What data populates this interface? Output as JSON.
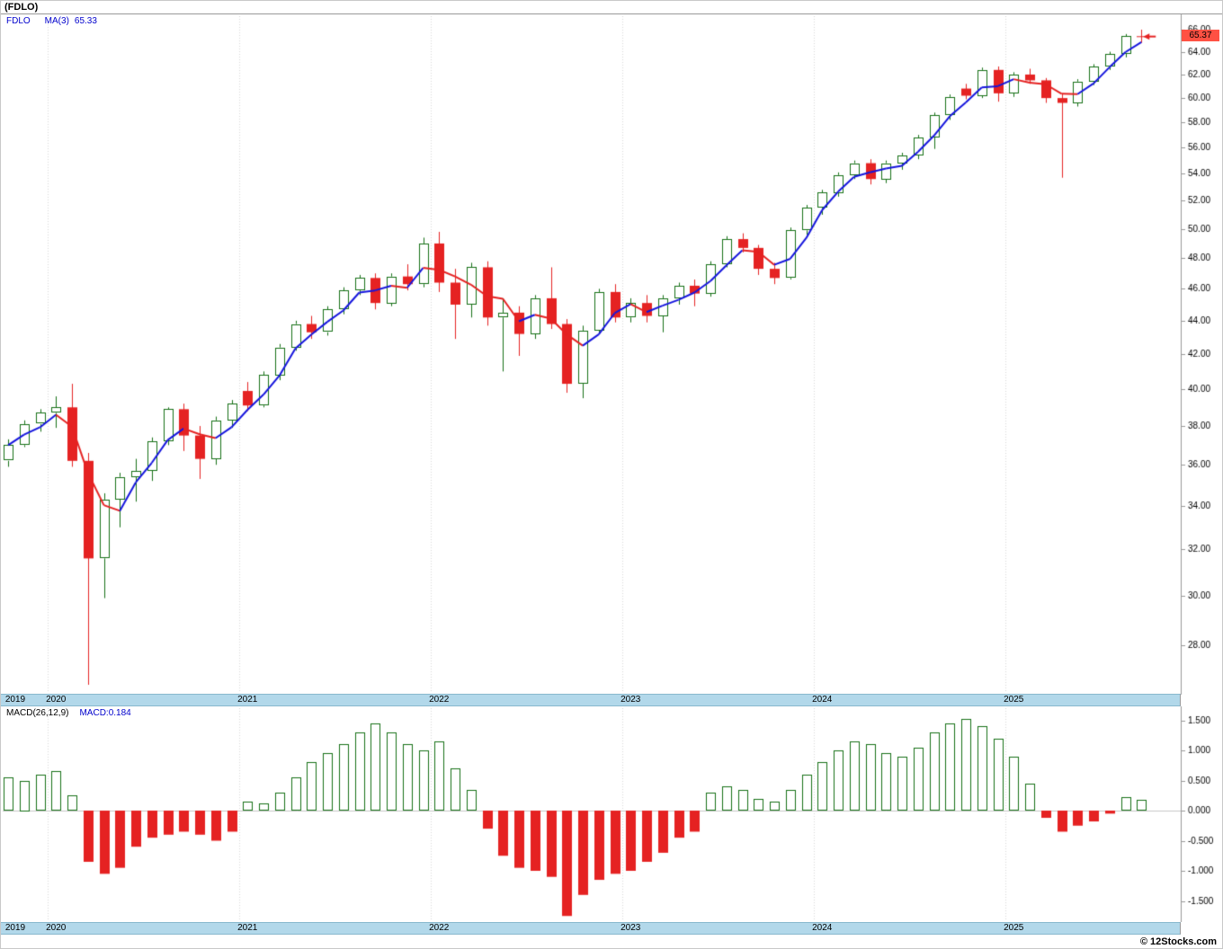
{
  "header": {
    "title": "(FDLO)"
  },
  "legend": {
    "symbol": "FDLO",
    "ma_label": "MA(3)",
    "ma_value": "65.33"
  },
  "macd_panel": {
    "label": "MACD(26,12,9)",
    "value_label": "MACD:0.184"
  },
  "footer": {
    "credit": "© 12Stocks.com"
  },
  "colors": {
    "up": "#157015",
    "down": "#e52222",
    "ma_up": "#1515dd",
    "ma_down": "#e52222",
    "axis_strip": "#b2d8ea",
    "tag_bg": "#ff5143",
    "legend_text": "#0000cc",
    "axis_line": "#999999",
    "grid_dotted": "#d8d8d8",
    "zero_line": "#c8c8c8"
  },
  "chart_data": {
    "type": "candlestick",
    "symbol": "FDLO",
    "interval": "monthly",
    "title": "(FDLO)",
    "overlay": "MA(3) line, blue when rising, red when falling",
    "ma_period": 3,
    "last_price": 65.37,
    "last_price_label": "65.37",
    "price_axis": {
      "scale": "log",
      "ticks": [
        "66.00",
        "64.00",
        "62.00",
        "60.00",
        "58.00",
        "56.00",
        "54.00",
        "52.00",
        "50.00",
        "48.00",
        "46.00",
        "44.00",
        "42.00",
        "40.00",
        "38.00",
        "36.00",
        "34.00",
        "32.00",
        "30.00",
        "28.00"
      ]
    },
    "years": [
      {
        "label": "2019",
        "month_index": 0
      },
      {
        "label": "2020",
        "month_index": 3
      },
      {
        "label": "2021",
        "month_index": 15
      },
      {
        "label": "2022",
        "month_index": 27
      },
      {
        "label": "2023",
        "month_index": 39
      },
      {
        "label": "2024",
        "month_index": 51
      },
      {
        "label": "2025",
        "month_index": 63
      }
    ],
    "months": [
      "2019-10",
      "2019-11",
      "2019-12",
      "2020-01",
      "2020-02",
      "2020-03",
      "2020-04",
      "2020-05",
      "2020-06",
      "2020-07",
      "2020-08",
      "2020-09",
      "2020-10",
      "2020-11",
      "2020-12",
      "2021-01",
      "2021-02",
      "2021-03",
      "2021-04",
      "2021-05",
      "2021-06",
      "2021-07",
      "2021-08",
      "2021-09",
      "2021-10",
      "2021-11",
      "2021-12",
      "2022-01",
      "2022-02",
      "2022-03",
      "2022-04",
      "2022-05",
      "2022-06",
      "2022-07",
      "2022-08",
      "2022-09",
      "2022-10",
      "2022-11",
      "2022-12",
      "2023-01",
      "2023-02",
      "2023-03",
      "2023-04",
      "2023-05",
      "2023-06",
      "2023-07",
      "2023-08",
      "2023-09",
      "2023-10",
      "2023-11",
      "2023-12",
      "2024-01",
      "2024-02",
      "2024-03",
      "2024-04",
      "2024-05",
      "2024-06",
      "2024-07",
      "2024-08",
      "2024-09",
      "2024-10",
      "2024-11",
      "2024-12",
      "2025-01",
      "2025-02",
      "2025-03",
      "2025-04",
      "2025-05",
      "2025-06",
      "2025-07",
      "2025-08",
      "2025-09"
    ],
    "ohlc": [
      [
        36.2,
        37.3,
        35.9,
        37.0
      ],
      [
        37.0,
        38.3,
        36.9,
        38.1
      ],
      [
        38.1,
        38.9,
        37.7,
        38.7
      ],
      [
        38.7,
        39.6,
        37.9,
        39.0
      ],
      [
        39.0,
        40.3,
        35.9,
        36.2
      ],
      [
        36.2,
        36.6,
        26.5,
        31.6
      ],
      [
        31.6,
        34.6,
        29.9,
        34.3
      ],
      [
        34.3,
        35.6,
        33.0,
        35.4
      ],
      [
        35.4,
        36.3,
        34.2,
        35.7
      ],
      [
        35.7,
        37.4,
        35.2,
        37.2
      ],
      [
        37.2,
        39.0,
        37.0,
        38.9
      ],
      [
        38.9,
        39.2,
        36.7,
        37.5
      ],
      [
        37.5,
        38.0,
        35.3,
        36.3
      ],
      [
        36.3,
        38.5,
        36.0,
        38.3
      ],
      [
        38.3,
        39.4,
        37.9,
        39.2
      ],
      [
        39.9,
        40.4,
        38.8,
        39.1
      ],
      [
        39.1,
        41.0,
        39.0,
        40.8
      ],
      [
        40.8,
        42.6,
        40.5,
        42.4
      ],
      [
        42.4,
        44.0,
        42.2,
        43.8
      ],
      [
        43.8,
        44.3,
        42.9,
        43.3
      ],
      [
        43.3,
        44.9,
        43.1,
        44.7
      ],
      [
        44.7,
        46.1,
        44.4,
        45.9
      ],
      [
        45.9,
        46.9,
        45.6,
        46.7
      ],
      [
        46.7,
        47.0,
        44.7,
        45.1
      ],
      [
        45.1,
        47.0,
        44.9,
        46.8
      ],
      [
        46.8,
        47.6,
        45.9,
        46.3
      ],
      [
        46.3,
        49.4,
        46.1,
        49.0
      ],
      [
        49.0,
        49.8,
        45.8,
        46.4
      ],
      [
        46.4,
        47.3,
        42.9,
        45.0
      ],
      [
        45.0,
        47.7,
        44.2,
        47.4
      ],
      [
        47.4,
        47.8,
        43.7,
        44.2
      ],
      [
        44.2,
        45.4,
        41.0,
        44.5
      ],
      [
        44.5,
        44.9,
        41.9,
        43.2
      ],
      [
        43.2,
        45.6,
        42.9,
        45.4
      ],
      [
        45.4,
        47.4,
        43.5,
        43.8
      ],
      [
        43.8,
        44.1,
        39.8,
        40.3
      ],
      [
        40.3,
        43.7,
        39.5,
        43.4
      ],
      [
        43.4,
        46.0,
        43.2,
        45.8
      ],
      [
        45.8,
        46.3,
        43.9,
        44.2
      ],
      [
        44.2,
        45.4,
        43.9,
        45.1
      ],
      [
        45.1,
        45.6,
        43.9,
        44.3
      ],
      [
        44.3,
        45.6,
        43.3,
        45.4
      ],
      [
        45.4,
        46.4,
        45.0,
        46.2
      ],
      [
        46.2,
        46.6,
        44.9,
        45.7
      ],
      [
        45.7,
        47.8,
        45.5,
        47.6
      ],
      [
        47.6,
        49.5,
        47.4,
        49.3
      ],
      [
        49.3,
        49.7,
        48.4,
        48.7
      ],
      [
        48.7,
        48.9,
        46.9,
        47.3
      ],
      [
        47.3,
        47.7,
        46.3,
        46.7
      ],
      [
        46.7,
        50.1,
        46.6,
        49.9
      ],
      [
        49.9,
        51.7,
        49.6,
        51.5
      ],
      [
        51.5,
        52.8,
        51.0,
        52.6
      ],
      [
        52.6,
        54.1,
        52.3,
        53.9
      ],
      [
        53.9,
        55.0,
        53.6,
        54.8
      ],
      [
        54.8,
        55.1,
        53.2,
        53.6
      ],
      [
        53.6,
        55.0,
        53.3,
        54.8
      ],
      [
        54.8,
        55.6,
        54.3,
        55.4
      ],
      [
        55.4,
        57.0,
        55.1,
        56.8
      ],
      [
        56.8,
        58.8,
        55.9,
        58.6
      ],
      [
        58.6,
        60.3,
        58.2,
        60.1
      ],
      [
        60.8,
        61.2,
        59.9,
        60.2
      ],
      [
        60.2,
        62.6,
        60.0,
        62.4
      ],
      [
        62.4,
        62.7,
        59.7,
        60.4
      ],
      [
        60.4,
        62.2,
        60.1,
        62.0
      ],
      [
        62.0,
        62.5,
        61.2,
        61.5
      ],
      [
        61.5,
        61.7,
        59.6,
        60.0
      ],
      [
        60.0,
        60.4,
        53.7,
        59.6
      ],
      [
        59.6,
        61.6,
        59.3,
        61.4
      ],
      [
        61.4,
        62.9,
        61.1,
        62.7
      ],
      [
        62.7,
        64.0,
        62.4,
        63.8
      ],
      [
        63.8,
        65.6,
        63.5,
        65.4
      ],
      [
        65.4,
        66.0,
        64.8,
        65.37
      ]
    ],
    "macd": {
      "params": "26,12,9",
      "last": 0.184,
      "ticks": [
        "1.500",
        "1.000",
        "0.500",
        "0.000",
        "-0.500",
        "-1.000",
        "-1.500"
      ],
      "hist": [
        0.55,
        0.5,
        0.6,
        0.65,
        0.25,
        -0.85,
        -1.05,
        -0.95,
        -0.6,
        -0.45,
        -0.4,
        -0.35,
        -0.4,
        -0.5,
        -0.35,
        0.15,
        0.12,
        0.3,
        0.55,
        0.8,
        0.95,
        1.1,
        1.3,
        1.45,
        1.3,
        1.1,
        1.0,
        1.15,
        0.7,
        0.35,
        -0.3,
        -0.75,
        -0.95,
        -1.0,
        -1.1,
        -1.75,
        -1.4,
        -1.15,
        -1.05,
        -1.0,
        -0.85,
        -0.7,
        -0.45,
        -0.35,
        0.3,
        0.4,
        0.35,
        0.2,
        0.15,
        0.35,
        0.6,
        0.8,
        1.0,
        1.15,
        1.1,
        0.95,
        0.9,
        1.05,
        1.3,
        1.45,
        1.52,
        1.4,
        1.2,
        0.9,
        0.45,
        -0.12,
        -0.35,
        -0.25,
        -0.18,
        -0.05,
        0.22,
        0.184
      ]
    }
  }
}
